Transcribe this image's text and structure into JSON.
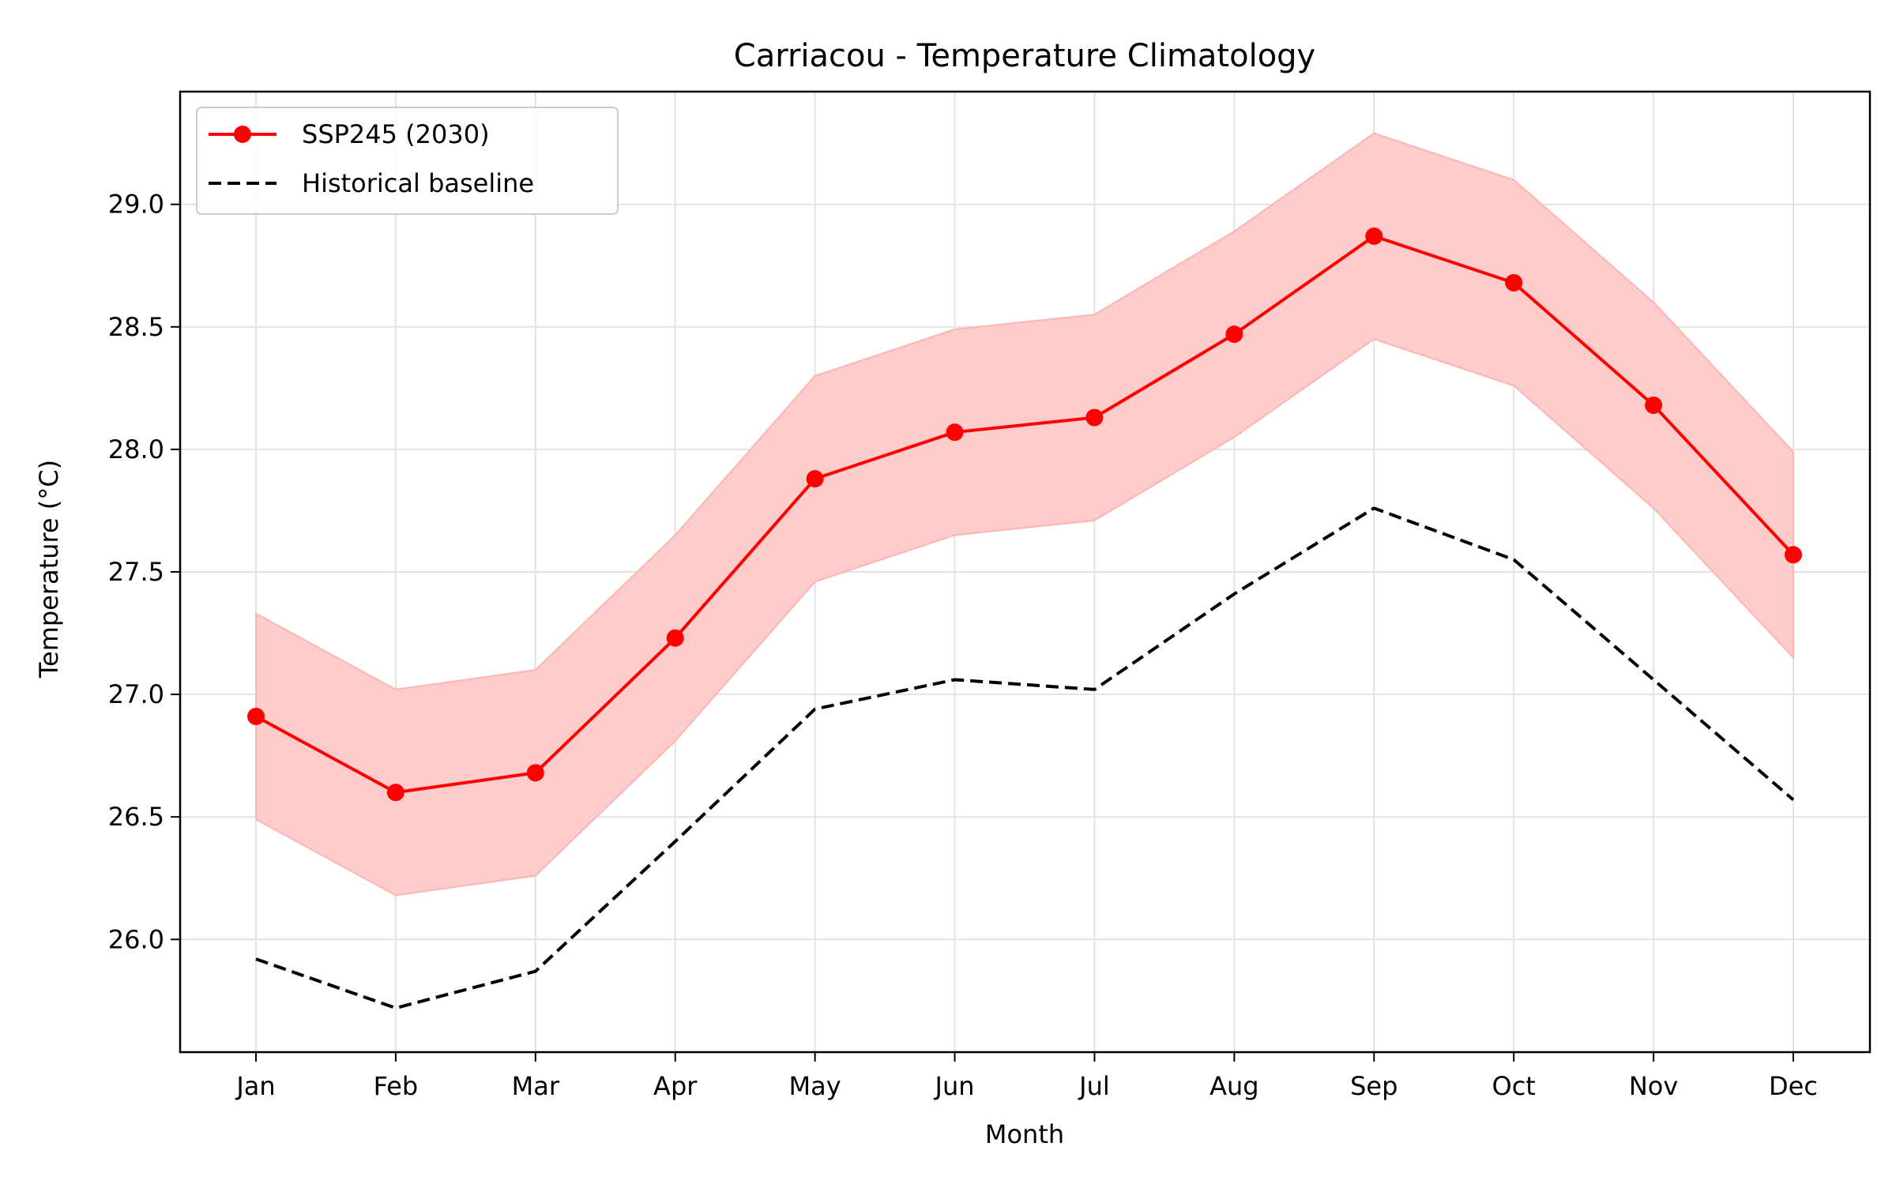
{
  "chart_data": {
    "type": "line",
    "title": "Carriacou - Temperature Climatology",
    "xlabel": "Month",
    "ylabel": "Temperature (°C)",
    "categories": [
      "Jan",
      "Feb",
      "Mar",
      "Apr",
      "May",
      "Jun",
      "Jul",
      "Aug",
      "Sep",
      "Oct",
      "Nov",
      "Dec"
    ],
    "ylim": [
      25.54,
      29.46
    ],
    "yticks": [
      26.0,
      26.5,
      27.0,
      27.5,
      28.0,
      28.5,
      29.0
    ],
    "ytick_labels": [
      "26.0",
      "26.5",
      "27.0",
      "27.5",
      "28.0",
      "28.5",
      "29.0"
    ],
    "grid": true,
    "legend_position": "top-left",
    "series": [
      {
        "name": "SSP245 (2030)",
        "style": "solid-with-markers",
        "color": "#ff0000",
        "values": [
          26.91,
          26.6,
          26.68,
          27.23,
          27.88,
          28.07,
          28.13,
          28.47,
          28.87,
          28.68,
          28.18,
          27.57
        ],
        "band_lower": [
          26.49,
          26.18,
          26.26,
          26.81,
          27.46,
          27.65,
          27.71,
          28.05,
          28.45,
          28.26,
          27.76,
          27.15
        ],
        "band_upper": [
          27.33,
          27.02,
          27.1,
          27.65,
          28.3,
          28.49,
          28.55,
          28.89,
          29.29,
          29.1,
          28.6,
          27.99
        ],
        "band_color": "#ffcccc"
      },
      {
        "name": "Historical baseline",
        "style": "dashed",
        "color": "#000000",
        "values": [
          25.92,
          25.72,
          25.87,
          26.4,
          26.94,
          27.06,
          27.02,
          27.41,
          27.76,
          27.55,
          27.06,
          26.57
        ]
      }
    ]
  }
}
